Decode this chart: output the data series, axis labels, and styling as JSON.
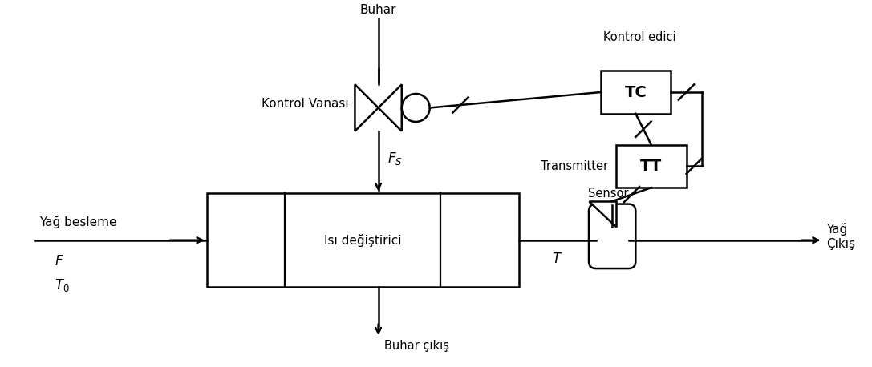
{
  "background_color": "#ffffff",
  "fig_width": 10.87,
  "fig_height": 4.58,
  "dpi": 100,
  "labels": {
    "buhar": "Buhar",
    "kontrol_vanasi": "Kontrol Vanası",
    "kontrol_edici": "Kontrol edici",
    "tc": "TC",
    "transmitter": "Transmitter",
    "tt": "TT",
    "sensor": "Sensör",
    "isi_degistirici": "Isı değiştirici",
    "yag_besleme": "Yağ besleme",
    "F": "$F$",
    "T0": "$T_0$",
    "Fs": "$F_S$",
    "T": "$T$",
    "buhar_cikis": "Buhar çıkış",
    "yag_cikis": "Yağ\nÇıkış"
  },
  "colors": {
    "line": "#000000",
    "box_fill": "#ffffff",
    "text": "#000000"
  }
}
